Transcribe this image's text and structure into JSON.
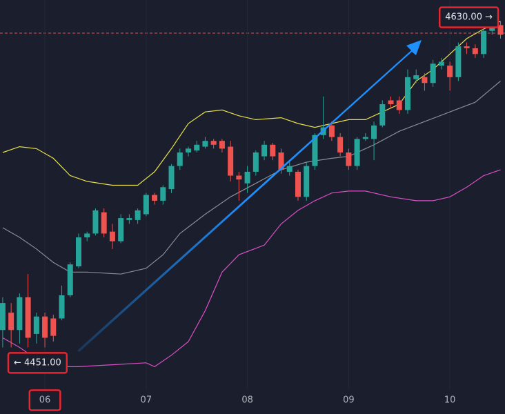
{
  "chart_data": {
    "type": "candlestick",
    "up_color": "#26a69a",
    "down_color": "#ef5350",
    "xlim": [
      -0.32,
      59.53
    ],
    "ylim": [
      4437,
      4639
    ],
    "xticks": [
      {
        "value": 5,
        "label": "06"
      },
      {
        "value": 17,
        "label": "07"
      },
      {
        "value": 29,
        "label": "08"
      },
      {
        "value": 41,
        "label": "09"
      },
      {
        "value": 53,
        "label": "10"
      }
    ],
    "open": [
      4468,
      4477,
      4468,
      4485,
      4466,
      4475,
      4474,
      4474,
      4486,
      4501,
      4516,
      4518,
      4529,
      4519,
      4514,
      4525,
      4525,
      4528,
      4538,
      4535,
      4541,
      4553,
      4560,
      4561,
      4563,
      4566,
      4566,
      4563,
      4548,
      4544,
      4550,
      4558,
      4564,
      4560,
      4550,
      4550,
      4537,
      4553,
      4569,
      4574,
      4568,
      4560,
      4553,
      4567,
      4567,
      4574,
      4587,
      4587,
      4582,
      4598,
      4599,
      4596,
      4605,
      4605,
      4599,
      4615,
      4614,
      4611,
      4623,
      4626
    ],
    "high": [
      4485,
      4482,
      4487,
      4497,
      4477,
      4477,
      4476,
      4491,
      4503,
      4518,
      4519,
      4531,
      4531,
      4523,
      4528,
      4528,
      4531,
      4539,
      4539,
      4543,
      4554,
      4562,
      4563,
      4566,
      4568,
      4567,
      4567,
      4566,
      4550,
      4553,
      4561,
      4566,
      4565,
      4562,
      4555,
      4551,
      4555,
      4570,
      4589,
      4576,
      4570,
      4562,
      4568,
      4570,
      4576,
      4587,
      4589,
      4589,
      4603,
      4603,
      4601,
      4608,
      4609,
      4607,
      4617,
      4617,
      4616,
      4624,
      4630,
      4628
    ],
    "low": [
      4459,
      4459,
      4461,
      4459,
      4461,
      4459,
      4462,
      4473,
      4485,
      4500,
      4514,
      4517,
      4516,
      4510,
      4513,
      4523,
      4523,
      4527,
      4533,
      4533,
      4539,
      4551,
      4558,
      4560,
      4562,
      4562,
      4560,
      4545,
      4535,
      4539,
      4548,
      4556,
      4556,
      4549,
      4548,
      4535,
      4535,
      4551,
      4567,
      4566,
      4558,
      4551,
      4551,
      4566,
      4556,
      4573,
      4583,
      4580,
      4580,
      4596,
      4592,
      4594,
      4603,
      4592,
      4597,
      4611,
      4609,
      4609,
      4621,
      4619
    ],
    "close": [
      4482,
      4468,
      4485,
      4464,
      4475,
      4464,
      4465,
      4486,
      4502,
      4516,
      4518,
      4530,
      4518,
      4514,
      4526,
      4526,
      4530,
      4538,
      4535,
      4542,
      4553,
      4560,
      4562,
      4564,
      4566,
      4564,
      4562,
      4548,
      4546,
      4550,
      4560,
      4564,
      4558,
      4551,
      4553,
      4537,
      4553,
      4569,
      4573,
      4568,
      4560,
      4553,
      4567,
      4568,
      4574,
      4585,
      4585,
      4582,
      4599,
      4600,
      4596,
      4606,
      4607,
      4599,
      4615,
      4614,
      4611,
      4623,
      4627,
      4621
    ],
    "lines": [
      {
        "color": "#e8e04a",
        "x": [
          0,
          2,
          4,
          6,
          8,
          10,
          13,
          16,
          18,
          20,
          22,
          24,
          26,
          28,
          30,
          33,
          35,
          37,
          39,
          41,
          43,
          45,
          47,
          49,
          51,
          53,
          55,
          57,
          59
        ],
        "values": [
          4560,
          4563,
          4562,
          4557,
          4548,
          4545,
          4543,
          4543,
          4550,
          4562,
          4575,
          4581,
          4582,
          4579,
          4577,
          4578,
          4575,
          4573,
          4575,
          4577,
          4577,
          4581,
          4585,
          4597,
          4603,
          4611,
          4619,
          4624,
          4628
        ]
      },
      {
        "color": "#8a8d96",
        "x": [
          0,
          2,
          4,
          6,
          8,
          10,
          14,
          17,
          19,
          21,
          24,
          27,
          30,
          33,
          36,
          39,
          41,
          44,
          47,
          50,
          53,
          56,
          59
        ],
        "values": [
          4521,
          4516,
          4510,
          4503,
          4498,
          4498,
          4497,
          4500,
          4507,
          4518,
          4528,
          4537,
          4544,
          4551,
          4555,
          4557,
          4558,
          4564,
          4571,
          4576,
          4581,
          4586,
          4597
        ]
      },
      {
        "color": "#d94fc4",
        "x": [
          0,
          2,
          4,
          6,
          9,
          13,
          17,
          18,
          20,
          22,
          24,
          26,
          28,
          31,
          33,
          35,
          37,
          39,
          41,
          43,
          46,
          49,
          51,
          53,
          55,
          57,
          59
        ],
        "values": [
          4464,
          4459,
          4453,
          4449,
          4449,
          4450,
          4451,
          4449,
          4455,
          4462,
          4478,
          4498,
          4507,
          4512,
          4523,
          4530,
          4535,
          4539,
          4540,
          4540,
          4537,
          4535,
          4535,
          4537,
          4542,
          4548,
          4551
        ]
      }
    ],
    "price_labels": [
      {
        "value": 4630,
        "label": "4630.00 →",
        "side": "right"
      },
      {
        "value": 4451,
        "label": "← 4451.00",
        "side": "left"
      }
    ]
  }
}
